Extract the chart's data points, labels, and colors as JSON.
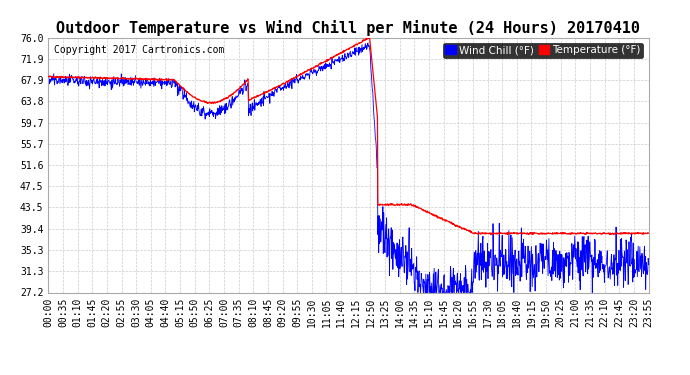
{
  "title": "Outdoor Temperature vs Wind Chill per Minute (24 Hours) 20170410",
  "copyright": "Copyright 2017 Cartronics.com",
  "legend_wind_chill": "Wind Chill (°F)",
  "legend_temperature": "Temperature (°F)",
  "wind_chill_color": "#0000ff",
  "temperature_color": "#ff0000",
  "background_color": "#ffffff",
  "grid_color": "#cccccc",
  "yticks": [
    27.2,
    31.3,
    35.3,
    39.4,
    43.5,
    47.5,
    51.6,
    55.7,
    59.7,
    63.8,
    67.9,
    71.9,
    76.0
  ],
  "xtick_labels": [
    "00:00",
    "00:35",
    "01:10",
    "01:45",
    "02:20",
    "02:55",
    "03:30",
    "04:05",
    "04:40",
    "05:15",
    "05:50",
    "06:25",
    "07:00",
    "07:35",
    "08:10",
    "08:45",
    "09:20",
    "09:55",
    "10:30",
    "11:05",
    "11:40",
    "12:15",
    "12:50",
    "13:25",
    "14:00",
    "14:35",
    "15:10",
    "15:45",
    "16:20",
    "16:55",
    "17:30",
    "18:05",
    "18:40",
    "19:15",
    "19:50",
    "20:25",
    "21:00",
    "21:35",
    "22:10",
    "22:45",
    "23:20",
    "23:55"
  ],
  "ylim": [
    27.2,
    76.0
  ],
  "title_fontsize": 11,
  "copyright_fontsize": 7,
  "axis_fontsize": 7,
  "legend_fontsize": 7.5
}
